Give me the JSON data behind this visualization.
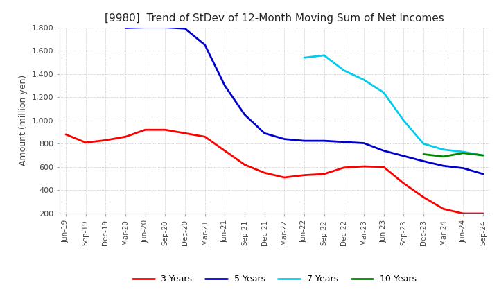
{
  "title": "[9980]  Trend of StDev of 12-Month Moving Sum of Net Incomes",
  "ylabel": "Amount (million yen)",
  "ylim": [
    200,
    1800
  ],
  "yticks": [
    200,
    400,
    600,
    800,
    1000,
    1200,
    1400,
    1600,
    1800
  ],
  "background_color": "#ffffff",
  "grid_color": "#aaaaaa",
  "legend_labels": [
    "3 Years",
    "5 Years",
    "7 Years",
    "10 Years"
  ],
  "legend_colors": [
    "#ff0000",
    "#0000cc",
    "#00ccee",
    "#008800"
  ],
  "x_labels": [
    "Jun-19",
    "Sep-19",
    "Dec-19",
    "Mar-20",
    "Jun-20",
    "Sep-20",
    "Dec-20",
    "Mar-21",
    "Jun-21",
    "Sep-21",
    "Dec-21",
    "Mar-22",
    "Jun-22",
    "Sep-22",
    "Dec-22",
    "Mar-23",
    "Jun-23",
    "Sep-23",
    "Dec-23",
    "Mar-24",
    "Jun-24",
    "Sep-24"
  ],
  "series_3y": [
    880,
    810,
    830,
    860,
    920,
    920,
    890,
    860,
    740,
    620,
    550,
    510,
    530,
    540,
    595,
    605,
    600,
    460,
    340,
    240,
    200,
    200
  ],
  "series_5y": [
    null,
    null,
    null,
    1795,
    1800,
    1800,
    1790,
    1650,
    1300,
    1050,
    890,
    840,
    825,
    825,
    815,
    805,
    740,
    695,
    650,
    610,
    590,
    540
  ],
  "series_7y": [
    null,
    null,
    null,
    null,
    null,
    null,
    null,
    null,
    null,
    null,
    null,
    null,
    1540,
    1560,
    1430,
    1350,
    1240,
    1000,
    800,
    750,
    730,
    700
  ],
  "series_10y": [
    null,
    null,
    null,
    null,
    null,
    null,
    null,
    null,
    null,
    null,
    null,
    null,
    null,
    null,
    null,
    null,
    null,
    null,
    710,
    690,
    720,
    700
  ]
}
